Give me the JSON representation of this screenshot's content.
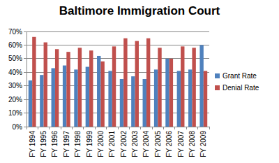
{
  "chart_data": {
    "type": "bar",
    "title": "Baltimore Immigration Court",
    "categories": [
      "FY 1994",
      "FY 1995",
      "FY 1996",
      "FY 1997",
      "FY 1998",
      "FY 1999",
      "FY 2000",
      "FY 2001",
      "FY 2002",
      "FY 2003",
      "FY 2004",
      "FY 2005",
      "FY 2006",
      "FY 2007",
      "FY 2008",
      "FY 2009"
    ],
    "series": [
      {
        "name": "Grant Rate",
        "color": "#4f81bd",
        "values": [
          34,
          38,
          43,
          45,
          42,
          44,
          52,
          41,
          35,
          37,
          35,
          42,
          50,
          41,
          42,
          60
        ]
      },
      {
        "name": "Denial Rate",
        "color": "#c0504d",
        "values": [
          66,
          62,
          57,
          55,
          58,
          56,
          48,
          59,
          65,
          63,
          65,
          58,
          50,
          59,
          58,
          41
        ]
      }
    ],
    "ylim": [
      0,
      70
    ],
    "yticks": [
      {
        "value": 0,
        "label": "0%"
      },
      {
        "value": 10,
        "label": "10%"
      },
      {
        "value": 20,
        "label": "20%"
      },
      {
        "value": 30,
        "label": "30%"
      },
      {
        "value": 40,
        "label": "40%"
      },
      {
        "value": 50,
        "label": "50%"
      },
      {
        "value": 60,
        "label": "60%"
      },
      {
        "value": 70,
        "label": "70%"
      }
    ],
    "grid": true,
    "legend": "right"
  }
}
